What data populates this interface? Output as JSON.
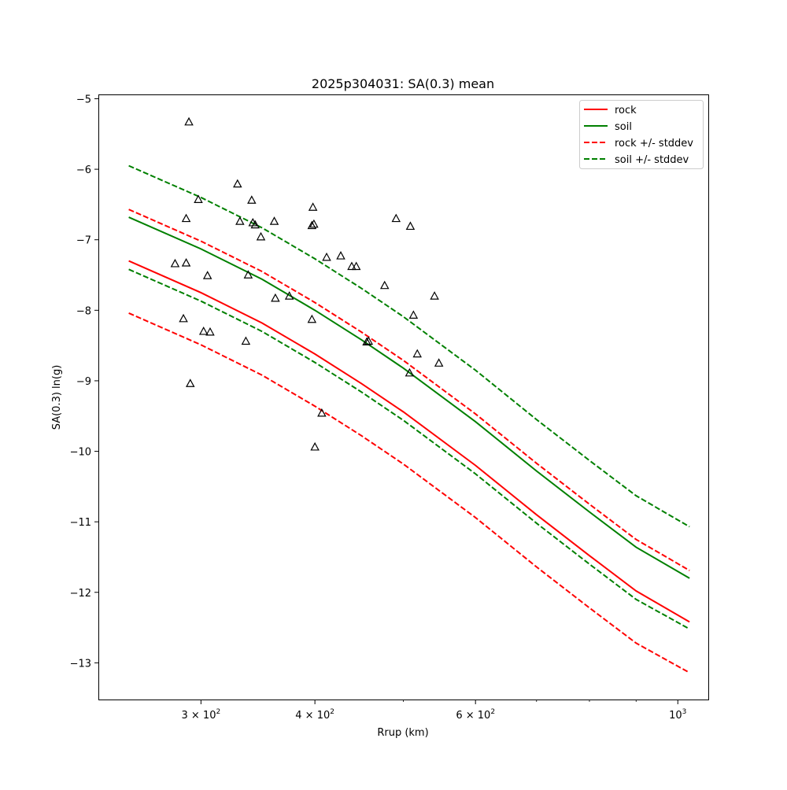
{
  "chart_data": {
    "type": "line",
    "title": "2025p304031: SA(0.3) mean",
    "xlabel": "Rrup (km)",
    "ylabel": "SA(0.3) ln(g)",
    "xscale": "log",
    "xlim": [
      232,
      1080
    ],
    "ylim": [
      -13.52,
      -4.95
    ],
    "grid": false,
    "legend_position": "top-right",
    "x_ticks": [
      {
        "value": 300,
        "base": "3 × 10",
        "exp": "2"
      },
      {
        "value": 400,
        "base": "4 × 10",
        "exp": "2"
      },
      {
        "value": 600,
        "base": "6 × 10",
        "exp": "2"
      },
      {
        "value": 1000,
        "base": "10",
        "exp": "3"
      }
    ],
    "x_minor_ticks": [
      500,
      700,
      800,
      900
    ],
    "y_ticks": [
      {
        "value": -5,
        "label": "−5"
      },
      {
        "value": -6,
        "label": "−6"
      },
      {
        "value": -7,
        "label": "−7"
      },
      {
        "value": -8,
        "label": "−8"
      },
      {
        "value": -9,
        "label": "−9"
      },
      {
        "value": -10,
        "label": "−10"
      },
      {
        "value": -11,
        "label": "−11"
      },
      {
        "value": -12,
        "label": "−12"
      },
      {
        "value": -13,
        "label": "−13"
      }
    ],
    "series": [
      {
        "name": "rock",
        "color": "#ff0000",
        "dash": "solid",
        "x": [
          250,
          300,
          350,
          400,
          450,
          500,
          600,
          700,
          800,
          900,
          1030
        ],
        "y": [
          -7.3,
          -7.75,
          -8.18,
          -8.62,
          -9.04,
          -9.44,
          -10.2,
          -10.9,
          -11.48,
          -11.98,
          -12.42
        ]
      },
      {
        "name": "soil",
        "color": "#008000",
        "dash": "solid",
        "x": [
          250,
          300,
          350,
          400,
          450,
          500,
          600,
          700,
          800,
          900,
          1030
        ],
        "y": [
          -6.68,
          -7.13,
          -7.56,
          -8.0,
          -8.42,
          -8.82,
          -9.58,
          -10.28,
          -10.86,
          -11.36,
          -11.8
        ]
      },
      {
        "name": "rock +/- stddev",
        "color": "#ff0000",
        "dash": "dashed",
        "x": [
          250,
          300,
          350,
          400,
          450,
          500,
          600,
          700,
          800,
          900,
          1030
        ],
        "y": [
          -6.57,
          -7.02,
          -7.45,
          -7.89,
          -8.31,
          -8.71,
          -9.47,
          -10.17,
          -10.75,
          -11.25,
          -11.69
        ]
      },
      {
        "name": "",
        "color": "#ff0000",
        "dash": "dashed",
        "x": [
          250,
          300,
          350,
          400,
          450,
          500,
          600,
          700,
          800,
          900,
          1030
        ],
        "y": [
          -8.04,
          -8.49,
          -8.92,
          -9.36,
          -9.78,
          -10.18,
          -10.94,
          -11.64,
          -12.22,
          -12.72,
          -13.14
        ]
      },
      {
        "name": "soil +/- stddev",
        "color": "#008000",
        "dash": "dashed",
        "x": [
          250,
          300,
          350,
          400,
          450,
          500,
          600,
          700,
          800,
          900,
          1030
        ],
        "y": [
          -5.95,
          -6.4,
          -6.83,
          -7.27,
          -7.69,
          -8.09,
          -8.85,
          -9.55,
          -10.13,
          -10.63,
          -11.07
        ]
      },
      {
        "name": "",
        "color": "#008000",
        "dash": "dashed",
        "x": [
          250,
          300,
          350,
          400,
          450,
          500,
          600,
          700,
          800,
          900,
          1030
        ],
        "y": [
          -7.42,
          -7.87,
          -8.3,
          -8.74,
          -9.16,
          -9.56,
          -10.32,
          -11.02,
          -11.6,
          -12.1,
          -12.52
        ]
      }
    ],
    "observations": {
      "marker": "open-triangle",
      "color": "#000000",
      "points": [
        {
          "x": 291,
          "y": -5.33
        },
        {
          "x": 298,
          "y": -6.43
        },
        {
          "x": 289,
          "y": -6.7
        },
        {
          "x": 281,
          "y": -7.34
        },
        {
          "x": 289,
          "y": -7.33
        },
        {
          "x": 305,
          "y": -7.51
        },
        {
          "x": 287,
          "y": -8.12
        },
        {
          "x": 302,
          "y": -8.3
        },
        {
          "x": 307,
          "y": -8.31
        },
        {
          "x": 292,
          "y": -9.04
        },
        {
          "x": 329,
          "y": -6.21
        },
        {
          "x": 341,
          "y": -6.44
        },
        {
          "x": 331,
          "y": -6.74
        },
        {
          "x": 342,
          "y": -6.76
        },
        {
          "x": 344,
          "y": -6.79
        },
        {
          "x": 349,
          "y": -6.96
        },
        {
          "x": 338,
          "y": -7.5
        },
        {
          "x": 336,
          "y": -8.44
        },
        {
          "x": 361,
          "y": -6.74
        },
        {
          "x": 362,
          "y": -7.83
        },
        {
          "x": 375,
          "y": -7.8
        },
        {
          "x": 398,
          "y": -6.54
        },
        {
          "x": 397,
          "y": -6.8
        },
        {
          "x": 399,
          "y": -6.78
        },
        {
          "x": 397,
          "y": -8.13
        },
        {
          "x": 400,
          "y": -9.94
        },
        {
          "x": 407,
          "y": -9.46
        },
        {
          "x": 412,
          "y": -7.25
        },
        {
          "x": 427,
          "y": -7.23
        },
        {
          "x": 439,
          "y": -7.38
        },
        {
          "x": 444,
          "y": -7.38
        },
        {
          "x": 456,
          "y": -8.45
        },
        {
          "x": 458,
          "y": -8.44
        },
        {
          "x": 477,
          "y": -7.65
        },
        {
          "x": 491,
          "y": -6.7
        },
        {
          "x": 509,
          "y": -6.81
        },
        {
          "x": 508,
          "y": -8.89
        },
        {
          "x": 513,
          "y": -8.07
        },
        {
          "x": 518,
          "y": -8.62
        },
        {
          "x": 541,
          "y": -7.8
        },
        {
          "x": 547,
          "y": -8.75
        }
      ]
    }
  }
}
